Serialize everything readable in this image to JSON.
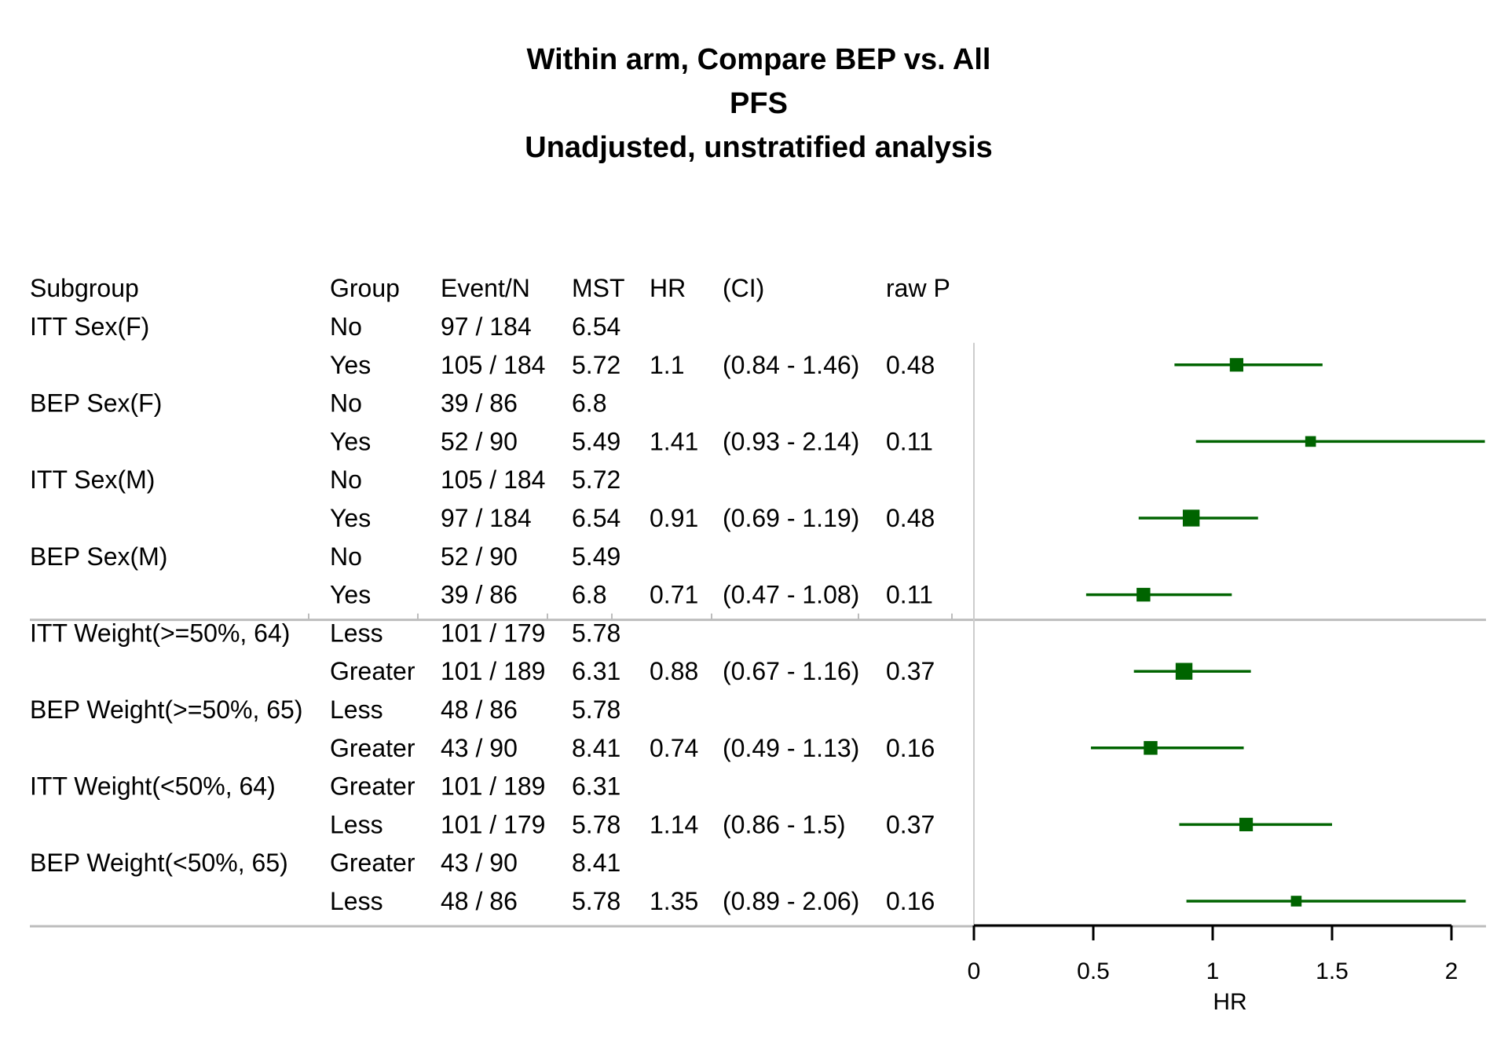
{
  "chart_data": {
    "type": "forest",
    "title_lines": [
      "Within arm, Compare BEP vs. All",
      "PFS",
      "Unadjusted, unstratified analysis"
    ],
    "columns": [
      "Subgroup",
      "Group",
      "Event/N",
      "MST",
      "HR",
      "(CI)",
      "raw P"
    ],
    "rows": [
      {
        "subgroup": "ITT Sex(F)",
        "group": "No",
        "event_n": "97 / 184",
        "mst": "6.54",
        "hr": "",
        "ci": "",
        "p": ""
      },
      {
        "subgroup": "",
        "group": "Yes",
        "event_n": "105 / 184",
        "mst": "5.72",
        "hr": "1.1",
        "ci": "(0.84 - 1.46)",
        "p": "0.48"
      },
      {
        "subgroup": "BEP Sex(F)",
        "group": "No",
        "event_n": "39 / 86",
        "mst": "6.8",
        "hr": "",
        "ci": "",
        "p": ""
      },
      {
        "subgroup": "",
        "group": "Yes",
        "event_n": "52 / 90",
        "mst": "5.49",
        "hr": "1.41",
        "ci": "(0.93 - 2.14)",
        "p": "0.11"
      },
      {
        "subgroup": "ITT Sex(M)",
        "group": "No",
        "event_n": "105 / 184",
        "mst": "5.72",
        "hr": "",
        "ci": "",
        "p": ""
      },
      {
        "subgroup": "",
        "group": "Yes",
        "event_n": "97 / 184",
        "mst": "6.54",
        "hr": "0.91",
        "ci": "(0.69 - 1.19)",
        "p": "0.48"
      },
      {
        "subgroup": "BEP Sex(M)",
        "group": "No",
        "event_n": "52 / 90",
        "mst": "5.49",
        "hr": "",
        "ci": "",
        "p": ""
      },
      {
        "subgroup": "",
        "group": "Yes",
        "event_n": "39 / 86",
        "mst": "6.8",
        "hr": "0.71",
        "ci": "(0.47 - 1.08)",
        "p": "0.11"
      },
      {
        "subgroup": "ITT Weight(>=50%, 64)",
        "group": "Less",
        "event_n": "101 / 179",
        "mst": "5.78",
        "hr": "",
        "ci": "",
        "p": ""
      },
      {
        "subgroup": "",
        "group": "Greater",
        "event_n": "101 / 189",
        "mst": "6.31",
        "hr": "0.88",
        "ci": "(0.67 - 1.16)",
        "p": "0.37"
      },
      {
        "subgroup": "BEP Weight(>=50%, 65)",
        "group": "Less",
        "event_n": "48 / 86",
        "mst": "5.78",
        "hr": "",
        "ci": "",
        "p": ""
      },
      {
        "subgroup": "",
        "group": "Greater",
        "event_n": "43 / 90",
        "mst": "8.41",
        "hr": "0.74",
        "ci": "(0.49 - 1.13)",
        "p": "0.16"
      },
      {
        "subgroup": "ITT Weight(<50%, 64)",
        "group": "Greater",
        "event_n": "101 / 189",
        "mst": "6.31",
        "hr": "",
        "ci": "",
        "p": ""
      },
      {
        "subgroup": "",
        "group": "Less",
        "event_n": "101 / 179",
        "mst": "5.78",
        "hr": "1.14",
        "ci": "(0.86 - 1.5)",
        "p": "0.37"
      },
      {
        "subgroup": "BEP Weight(<50%, 65)",
        "group": "Greater",
        "event_n": "43 / 90",
        "mst": "8.41",
        "hr": "",
        "ci": "",
        "p": ""
      },
      {
        "subgroup": "",
        "group": "Less",
        "event_n": "48 / 86",
        "mst": "5.78",
        "hr": "1.35",
        "ci": "(0.89 - 2.06)",
        "p": "0.16"
      }
    ],
    "estimates": [
      {
        "row": 1,
        "hr": 1.1,
        "lo": 0.84,
        "hi": 1.46,
        "weight": 0.6
      },
      {
        "row": 3,
        "hr": 1.41,
        "lo": 0.93,
        "hi": 2.14,
        "weight": 0.3
      },
      {
        "row": 5,
        "hr": 0.91,
        "lo": 0.69,
        "hi": 1.19,
        "weight": 0.95
      },
      {
        "row": 7,
        "hr": 0.71,
        "lo": 0.47,
        "hi": 1.08,
        "weight": 0.62
      },
      {
        "row": 9,
        "hr": 0.88,
        "lo": 0.67,
        "hi": 1.16,
        "weight": 0.95
      },
      {
        "row": 11,
        "hr": 0.74,
        "lo": 0.49,
        "hi": 1.13,
        "weight": 0.62
      },
      {
        "row": 13,
        "hr": 1.14,
        "lo": 0.86,
        "hi": 1.5,
        "weight": 0.6
      },
      {
        "row": 15,
        "hr": 1.35,
        "lo": 0.89,
        "hi": 2.06,
        "weight": 0.3
      }
    ],
    "section_breaks_after_rows": [
      7,
      15
    ],
    "xlabel": "HR",
    "xlim": [
      0,
      2.15
    ],
    "xticks": [
      0,
      0.5,
      1,
      1.5,
      2
    ],
    "xtick_labels": [
      "0",
      "0.5",
      "1",
      "1.5",
      "2"
    ],
    "reference_line_x": 0,
    "colors": {
      "marker": "#006400",
      "divider": "#bdbdbd",
      "reference": "#cccccc",
      "axis": "#000000"
    }
  }
}
